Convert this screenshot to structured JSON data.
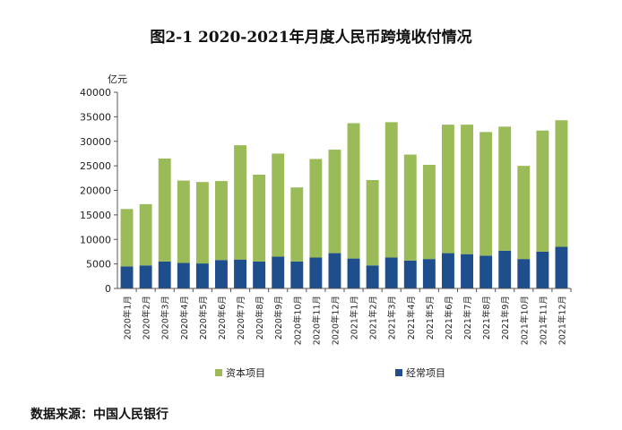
{
  "colors": {
    "capital": "#9bbb59",
    "current": "#1f4e8c",
    "axis": "#555555"
  },
  "chart_data": {
    "type": "bar",
    "stacked": true,
    "title": "图2-1 2020-2021年月度人民币跨境收付情况",
    "ylabel": "亿元",
    "ylim": [
      0,
      40000
    ],
    "yticks": [
      0,
      5000,
      10000,
      15000,
      20000,
      25000,
      30000,
      35000,
      40000
    ],
    "grid": false,
    "legend_position": "bottom",
    "categories": [
      "2020年1月",
      "2020年2月",
      "2020年3月",
      "2020年4月",
      "2020年5月",
      "2020年6月",
      "2020年7月",
      "2020年8月",
      "2020年9月",
      "2020年10月",
      "2020年11月",
      "2020年12月",
      "2021年1月",
      "2021年2月",
      "2021年3月",
      "2021年4月",
      "2021年5月",
      "2021年6月",
      "2021年7月",
      "2021年8月",
      "2021年9月",
      "2021年10月",
      "2021年11月",
      "2021年12月"
    ],
    "series": [
      {
        "name": "经常项目",
        "values": [
          4500,
          4700,
          5500,
          5200,
          5100,
          5800,
          5900,
          5500,
          6500,
          5500,
          6300,
          7200,
          6100,
          4700,
          6300,
          5700,
          6000,
          7200,
          7000,
          6700,
          7700,
          6000,
          7500,
          8500
        ]
      },
      {
        "name": "资本项目",
        "values": [
          11700,
          12500,
          21000,
          16800,
          16600,
          16100,
          23300,
          17700,
          21000,
          15100,
          20100,
          21100,
          27600,
          17400,
          27600,
          21600,
          19200,
          26200,
          26400,
          25200,
          25300,
          19000,
          24700,
          25800
        ]
      }
    ]
  },
  "source_note": "数据来源：中国人民银行"
}
